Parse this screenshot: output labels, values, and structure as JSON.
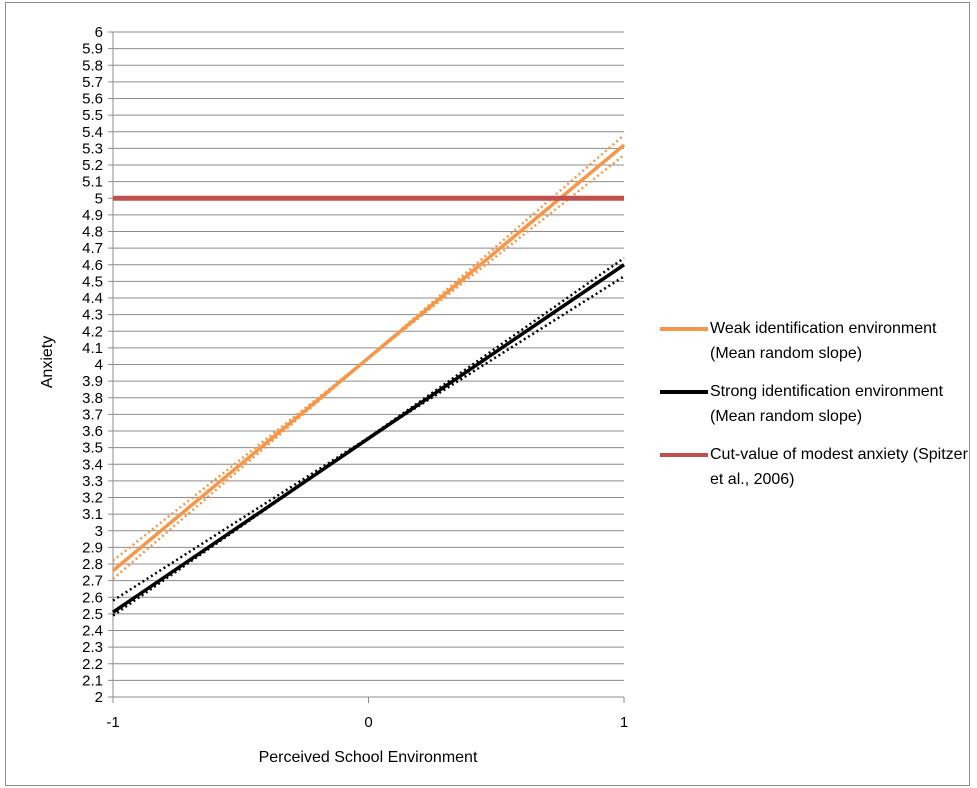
{
  "chart_data": {
    "type": "line",
    "title": "",
    "xlabel": "Perceived School Environment",
    "ylabel": "Anxiety",
    "xlim": [
      -1,
      1
    ],
    "ylim": [
      2,
      6
    ],
    "x_ticks": [
      "-1",
      "0",
      "1"
    ],
    "y_ticks": [
      "2",
      "2.1",
      "2.2",
      "2.3",
      "2.4",
      "2.5",
      "2.6",
      "2.7",
      "2.8",
      "2.9",
      "3",
      "3.1",
      "3.2",
      "3.3",
      "3.4",
      "3.5",
      "3.6",
      "3.7",
      "3.8",
      "3.9",
      "4",
      "4.1",
      "4.2",
      "4.3",
      "4.4",
      "4.5",
      "4.6",
      "4.7",
      "4.8",
      "4.9",
      "5",
      "5.1",
      "5.2",
      "5.3",
      "5.4",
      "5.5",
      "5.6",
      "5.7",
      "5.8",
      "5.9",
      "6"
    ],
    "grid": "horizontal",
    "legend_position": "right",
    "series": [
      {
        "name": "Weak identification environment (Mean random slope)",
        "color": "#f79646",
        "x": [
          -1,
          1
        ],
        "y": [
          2.76,
          5.32
        ],
        "ci_lower": {
          "x": [
            -1,
            0,
            1
          ],
          "y": [
            2.71,
            4.04,
            5.26
          ]
        },
        "ci_upper": {
          "x": [
            -1,
            0,
            1
          ],
          "y": [
            2.82,
            4.04,
            5.38
          ]
        }
      },
      {
        "name": "Strong identification environment (Mean random slope)",
        "color": "#000000",
        "x": [
          -1,
          1
        ],
        "y": [
          2.51,
          4.6
        ],
        "ci_lower": {
          "x": [
            -1,
            0,
            1
          ],
          "y": [
            2.49,
            3.56,
            4.53
          ]
        },
        "ci_upper": {
          "x": [
            -1,
            0,
            1
          ],
          "y": [
            2.58,
            3.56,
            4.64
          ]
        }
      },
      {
        "name": "Cut-value of modest anxiety (Spitzer et al., 2006)",
        "color": "#c0504d",
        "x": [
          -1,
          1
        ],
        "y": [
          5,
          5
        ]
      }
    ]
  }
}
